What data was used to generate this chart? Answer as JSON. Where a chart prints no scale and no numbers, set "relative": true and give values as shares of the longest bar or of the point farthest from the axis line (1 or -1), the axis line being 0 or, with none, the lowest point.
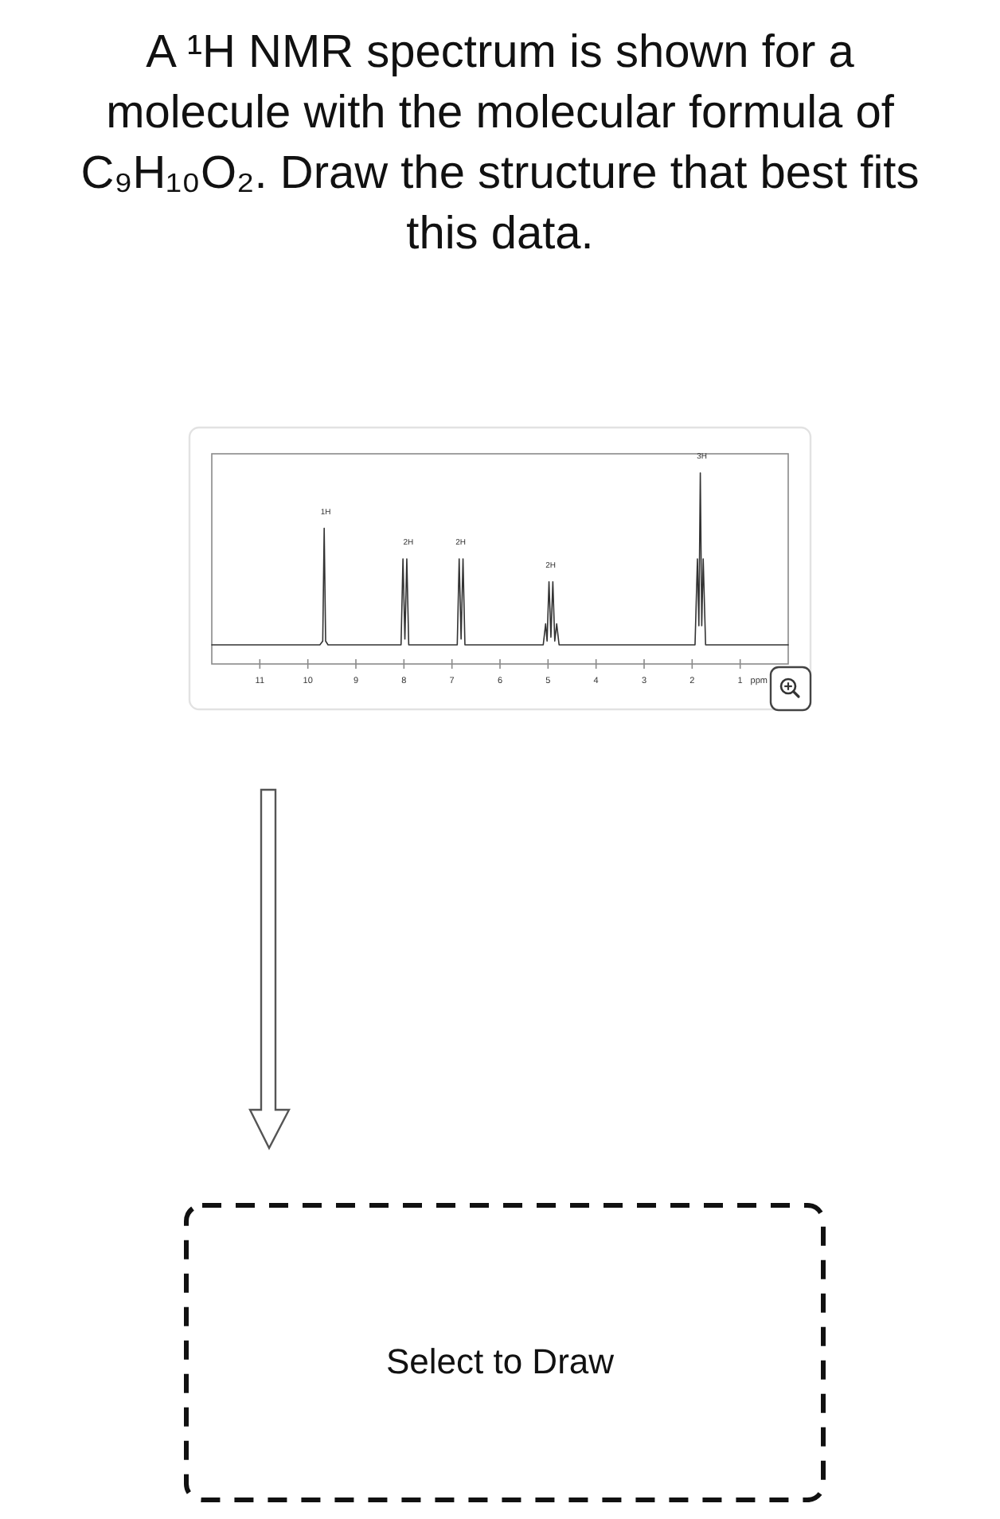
{
  "chart_data": {
    "type": "line",
    "title": "A ¹H NMR spectrum is shown for a molecule with the molecular formula of C₉H₁₀O₂. Draw the structure that best fits this data.",
    "xlabel": "ppm",
    "relative": true,
    "xlim": [
      12,
      0
    ],
    "xticks": [
      11,
      10,
      9,
      8,
      7,
      6,
      5,
      4,
      3,
      2,
      1
    ],
    "x": [
      12,
      9.75,
      9.69,
      9.66,
      9.63,
      9.58,
      8.06,
      8.02,
      7.98,
      7.94,
      7.9,
      6.89,
      6.85,
      6.81,
      6.77,
      6.73,
      5.1,
      5.05,
      5.02,
      4.98,
      4.94,
      4.9,
      4.86,
      4.82,
      4.77,
      1.94,
      1.89,
      1.86,
      1.83,
      1.8,
      1.77,
      1.72,
      0
    ],
    "values": [
      0.1,
      0.1,
      0.12,
      0.71,
      0.12,
      0.1,
      0.1,
      0.55,
      0.13,
      0.55,
      0.1,
      0.1,
      0.55,
      0.13,
      0.55,
      0.1,
      0.1,
      0.21,
      0.12,
      0.43,
      0.14,
      0.43,
      0.12,
      0.21,
      0.1,
      0.1,
      0.55,
      0.2,
      1.0,
      0.2,
      0.55,
      0.1,
      0.1
    ],
    "color": "#333333",
    "annotations": [
      {
        "text": "1H",
        "x": 9.66,
        "y": 0.71
      },
      {
        "text": "2H",
        "x": 7.94,
        "y": 0.55
      },
      {
        "text": "2H",
        "x": 6.85,
        "y": 0.55
      },
      {
        "text": "2H",
        "x": 4.98,
        "y": 0.43
      },
      {
        "text": "3H",
        "x": 1.83,
        "y": 1.0
      },
      "Select to Draw"
    ]
  }
}
